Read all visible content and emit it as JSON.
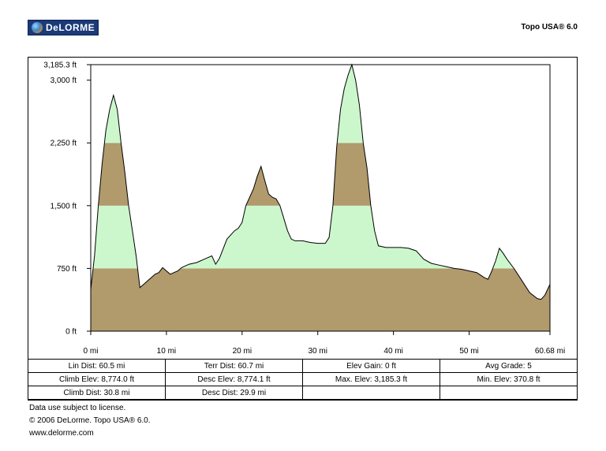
{
  "header": {
    "logo_text": "DeLORME",
    "product": "Topo USA® 6.0"
  },
  "chart_data": {
    "type": "area",
    "xlim": [
      0,
      60.68
    ],
    "ylim": [
      0,
      3185.3
    ],
    "x_ticks": [
      0,
      10,
      20,
      30,
      40,
      50,
      60.68
    ],
    "x_tick_labels": [
      "0 mi",
      "10 mi",
      "20 mi",
      "30 mi",
      "40 mi",
      "50 mi",
      "60.68 mi"
    ],
    "y_ticks": [
      0,
      750,
      1500,
      2250,
      3000,
      3185.3
    ],
    "y_tick_labels": [
      "0 ft",
      "750 ft",
      "1,500 ft",
      "2,250 ft",
      "3,000 ft",
      "3,185.3 ft"
    ],
    "bands": [
      {
        "from": 0,
        "to": 750,
        "color": "#b19a6c"
      },
      {
        "from": 750,
        "to": 1500,
        "color": "#ccf7cc"
      },
      {
        "from": 1500,
        "to": 2250,
        "color": "#b19a6c"
      },
      {
        "from": 2250,
        "to": 3185.3,
        "color": "#ccf7cc"
      }
    ],
    "x": [
      0,
      0.5,
      1,
      1.5,
      2,
      2.5,
      3,
      3.5,
      4,
      4.5,
      5,
      5.5,
      6,
      6.5,
      7,
      7.5,
      8,
      8.5,
      9,
      9.5,
      10,
      10.5,
      11,
      11.5,
      12,
      13,
      14,
      15,
      16,
      16.5,
      17,
      18,
      19,
      19.5,
      20,
      20.5,
      21,
      21.5,
      22,
      22.5,
      23,
      23.5,
      24,
      24.5,
      25,
      25.5,
      26,
      26.5,
      27,
      28,
      29,
      30,
      31,
      31.5,
      32,
      32.5,
      33,
      33.5,
      34,
      34.5,
      35,
      35.5,
      36,
      36.5,
      37,
      37.5,
      38,
      39,
      40,
      41,
      42,
      43,
      44,
      45,
      46,
      47,
      48,
      49,
      50,
      51,
      52,
      52.5,
      53,
      53.5,
      54,
      54.5,
      55,
      56,
      57,
      58,
      59,
      59.5,
      60,
      60.68
    ],
    "y": [
      500,
      900,
      1500,
      2000,
      2400,
      2650,
      2820,
      2650,
      2250,
      1900,
      1500,
      1200,
      900,
      520,
      560,
      600,
      640,
      680,
      700,
      760,
      720,
      680,
      700,
      720,
      760,
      800,
      820,
      860,
      900,
      800,
      870,
      1100,
      1200,
      1230,
      1300,
      1500,
      1600,
      1700,
      1850,
      1970,
      1800,
      1640,
      1600,
      1580,
      1500,
      1350,
      1200,
      1100,
      1080,
      1080,
      1060,
      1050,
      1050,
      1120,
      1500,
      2200,
      2650,
      2900,
      3060,
      3185,
      3000,
      2700,
      2250,
      1950,
      1500,
      1200,
      1020,
      1000,
      1000,
      1000,
      990,
      960,
      860,
      810,
      790,
      770,
      750,
      740,
      720,
      700,
      640,
      620,
      720,
      840,
      990,
      930,
      860,
      740,
      600,
      460,
      390,
      380,
      430,
      560
    ]
  },
  "stats": {
    "rows": [
      [
        "Lin Dist: 60.5 mi",
        "Terr Dist: 60.7 mi",
        "Elev Gain: 0 ft",
        "Avg Grade: 5"
      ],
      [
        "Climb Elev: 8,774.0 ft",
        "Desc Elev: 8,774.1 ft",
        "Max. Elev: 3,185.3 ft",
        "Min. Elev: 370.8 ft"
      ],
      [
        "Climb Dist: 30.8 mi",
        "Desc Dist: 29.9 mi",
        "",
        ""
      ]
    ]
  },
  "footer": {
    "line1": "Data use subject to license.",
    "line2": "© 2006 DeLorme. Topo USA® 6.0.",
    "line3": "www.delorme.com"
  }
}
